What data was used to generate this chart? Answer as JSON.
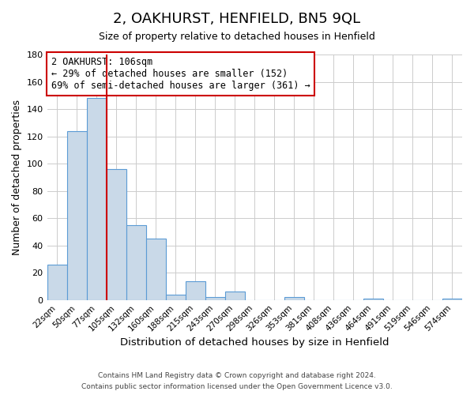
{
  "title": "2, OAKHURST, HENFIELD, BN5 9QL",
  "subtitle": "Size of property relative to detached houses in Henfield",
  "xlabel": "Distribution of detached houses by size in Henfield",
  "ylabel": "Number of detached properties",
  "bar_labels": [
    "22sqm",
    "50sqm",
    "77sqm",
    "105sqm",
    "132sqm",
    "160sqm",
    "188sqm",
    "215sqm",
    "243sqm",
    "270sqm",
    "298sqm",
    "326sqm",
    "353sqm",
    "381sqm",
    "408sqm",
    "436sqm",
    "464sqm",
    "491sqm",
    "519sqm",
    "546sqm",
    "574sqm"
  ],
  "bar_values": [
    26,
    124,
    148,
    96,
    55,
    45,
    4,
    14,
    2,
    6,
    0,
    0,
    2,
    0,
    0,
    0,
    1,
    0,
    0,
    0,
    1
  ],
  "bar_color": "#c9d9e8",
  "bar_edge_color": "#5b9bd5",
  "vline_color": "#cc0000",
  "annotation_text": "2 OAKHURST: 106sqm\n← 29% of detached houses are smaller (152)\n69% of semi-detached houses are larger (361) →",
  "annotation_box_color": "#ffffff",
  "annotation_box_edge_color": "#cc0000",
  "ylim": [
    0,
    180
  ],
  "yticks": [
    0,
    20,
    40,
    60,
    80,
    100,
    120,
    140,
    160,
    180
  ],
  "footer1": "Contains HM Land Registry data © Crown copyright and database right 2024.",
  "footer2": "Contains public sector information licensed under the Open Government Licence v3.0.",
  "background_color": "#ffffff",
  "grid_color": "#cccccc",
  "title_fontsize": 13,
  "subtitle_fontsize": 9
}
